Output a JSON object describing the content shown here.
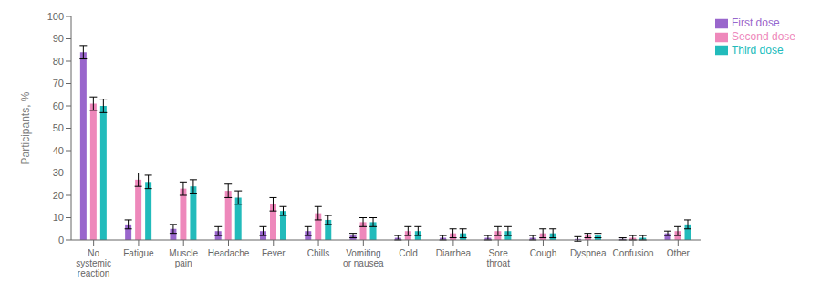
{
  "chart_data": {
    "type": "bar",
    "categories": [
      "No\nsystemic\nreaction",
      "Fatigue",
      "Muscle\npain",
      "Headache",
      "Fever",
      "Chills",
      "Vomiting\nor nausea",
      "Cold",
      "Diarrhea",
      "Sore\nthroat",
      "Cough",
      "Dyspnea",
      "Confusion",
      "Other"
    ],
    "series": [
      {
        "name": "First dose",
        "color": "#9966cc",
        "values": [
          84,
          7,
          5,
          4,
          4,
          4,
          2,
          1,
          1,
          1,
          1,
          0.5,
          0.5,
          3
        ],
        "errors": [
          3,
          2,
          2,
          2,
          2,
          2,
          1,
          1,
          1,
          1,
          1,
          1,
          0.5,
          1
        ]
      },
      {
        "name": "Second dose",
        "color": "#ee88bb",
        "values": [
          61,
          27,
          23,
          22,
          16,
          12,
          8,
          4,
          3,
          4,
          3,
          2,
          1,
          4
        ],
        "errors": [
          3,
          3,
          3,
          3,
          3,
          3,
          2,
          2,
          2,
          2,
          2,
          1,
          1,
          2
        ]
      },
      {
        "name": "Third dose",
        "color": "#22bbbb",
        "values": [
          60,
          26,
          24,
          19,
          13,
          9,
          8,
          4,
          3,
          4,
          3,
          2,
          1,
          7
        ],
        "errors": [
          3,
          3,
          3,
          3,
          2,
          2,
          2,
          2,
          2,
          2,
          2,
          1,
          1,
          2
        ]
      }
    ],
    "ylabel": "Participants, %",
    "ylim": [
      0,
      100
    ],
    "yticks": [
      0,
      10,
      20,
      30,
      40,
      50,
      60,
      70,
      80,
      90,
      100
    ],
    "legend": "right",
    "grid": false
  }
}
